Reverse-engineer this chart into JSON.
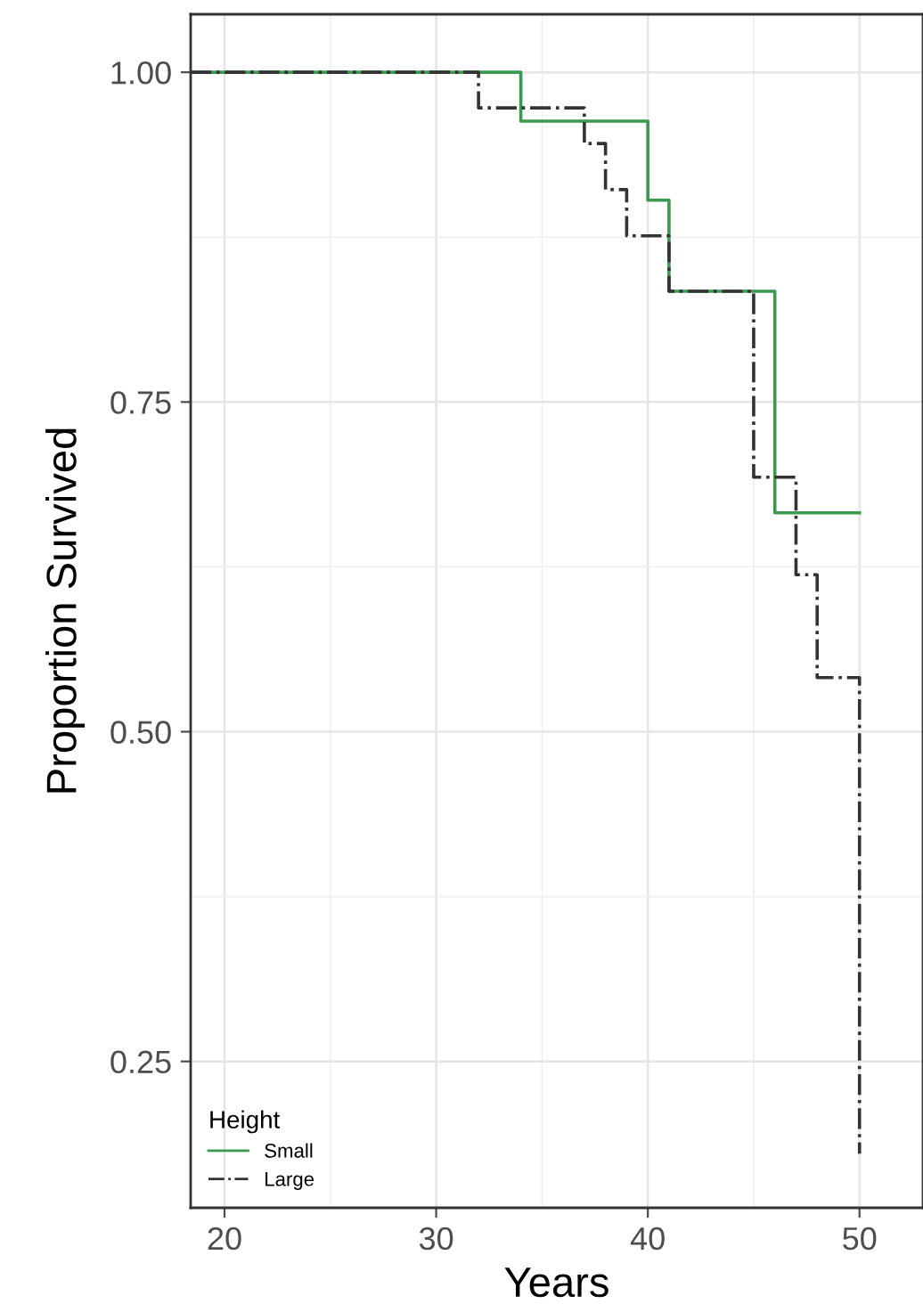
{
  "chart_data": {
    "type": "step",
    "xlabel": "Years",
    "ylabel": "Proportion Survived",
    "legend_title": "Height",
    "legend": "bottom left",
    "grid": true,
    "xlim": [
      18.4,
      53.0
    ],
    "xticks": [
      20,
      30,
      40,
      50
    ],
    "ylim": [
      0.139,
      1.044
    ],
    "yticks": [
      {
        "value": 0.25,
        "label": "0.25"
      },
      {
        "value": 0.5,
        "label": "0.50"
      },
      {
        "value": 0.75,
        "label": "0.75"
      },
      {
        "value": 1.0,
        "label": "1.00"
      }
    ],
    "series": [
      {
        "name": "Small",
        "color": "#3a9a4f",
        "line_style": "solid",
        "x": [
          18.4,
          34,
          40,
          41,
          46,
          50
        ],
        "values": [
          1.0,
          0.963,
          0.903,
          0.834,
          0.666,
          0.666
        ]
      },
      {
        "name": "Large",
        "color": "#333333",
        "line_style": "dashdot",
        "x": [
          18.4,
          32,
          37,
          38,
          39,
          41,
          45,
          47,
          48,
          50
        ],
        "values": [
          1.0,
          0.973,
          0.946,
          0.911,
          0.876,
          0.834,
          0.693,
          0.619,
          0.541,
          0.18
        ]
      }
    ]
  }
}
